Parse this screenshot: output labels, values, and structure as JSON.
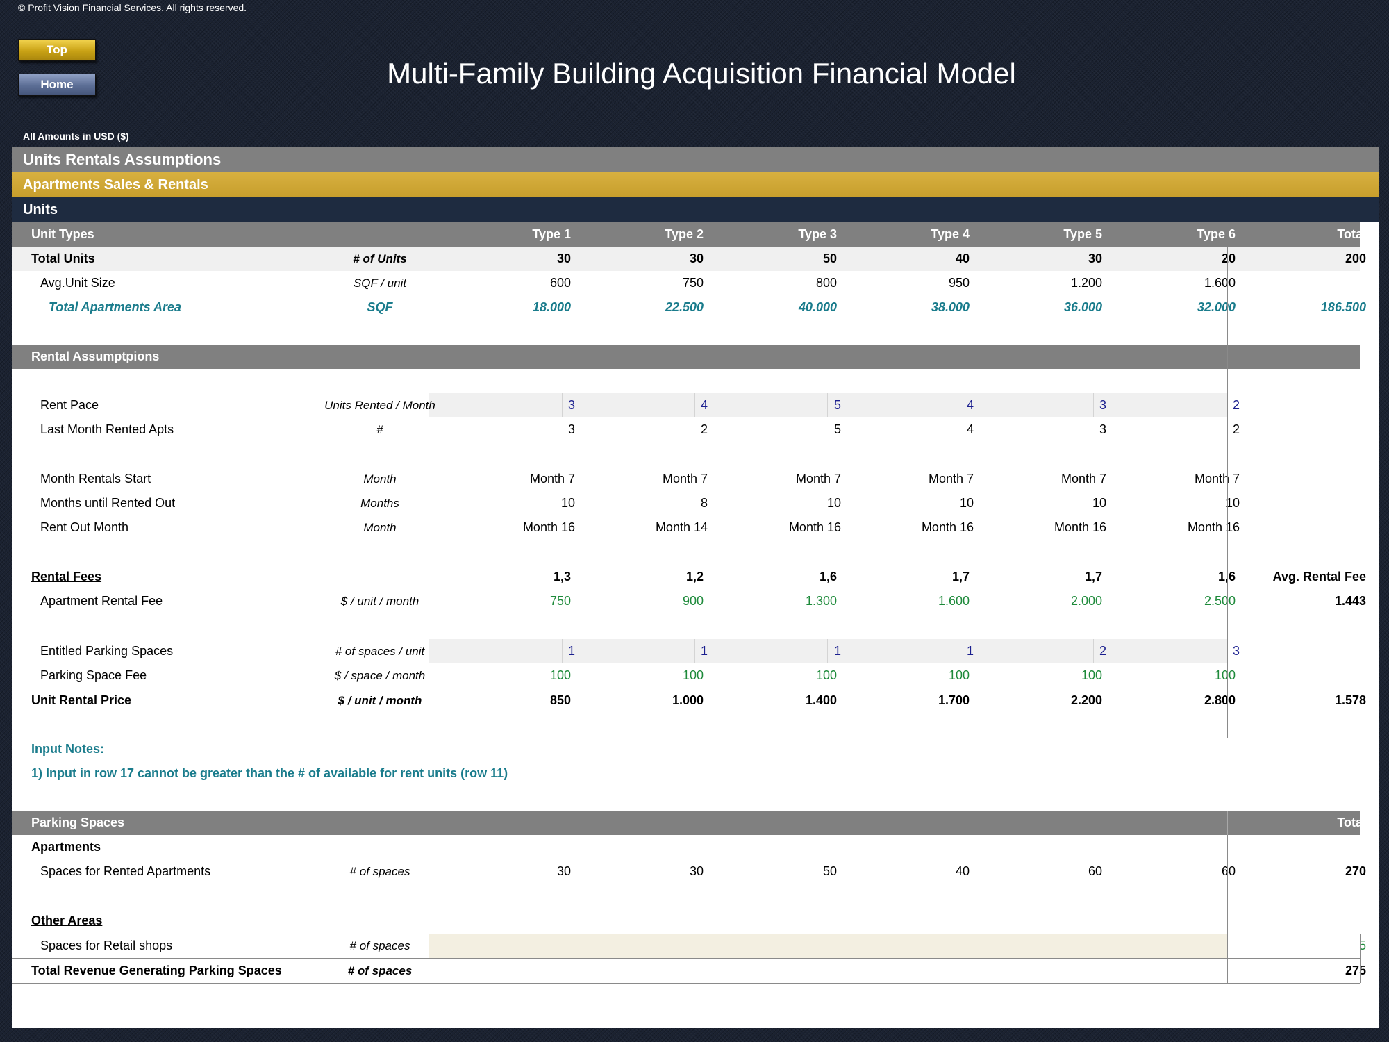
{
  "copyright": "© Profit Vision Financial Services. All rights reserved.",
  "nav": {
    "top": "Top",
    "home": "Home"
  },
  "title": "Multi-Family Building Acquisition Financial Model",
  "amounts_note": "All Amounts in  USD ($)",
  "bands": {
    "section": "Units Rentals Assumptions",
    "subsection": "Apartments Sales & Rentals",
    "group": "Units"
  },
  "unit_types": {
    "label": "Unit Types",
    "types": [
      "Type 1",
      "Type 2",
      "Type 3",
      "Type 4",
      "Type 5",
      "Type 6"
    ],
    "total": "Total"
  },
  "total_units": {
    "label": "Total Units",
    "unit": "# of Units",
    "values": [
      "30",
      "30",
      "50",
      "40",
      "30",
      "20"
    ],
    "total": "200"
  },
  "avg_unit_size": {
    "label": "Avg.Unit Size",
    "unit": "SQF / unit",
    "values": [
      "600",
      "750",
      "800",
      "950",
      "1.200",
      "1.600"
    ]
  },
  "total_area": {
    "label": "Total Apartments Area",
    "unit": "SQF",
    "values": [
      "18.000",
      "22.500",
      "40.000",
      "38.000",
      "36.000",
      "32.000"
    ],
    "total": "186.500"
  },
  "rental_header": "Rental Assumptpions",
  "rent_pace": {
    "label": "Rent Pace",
    "unit": "Units Rented / Month",
    "values": [
      "3",
      "4",
      "5",
      "4",
      "3",
      "2"
    ]
  },
  "last_month": {
    "label": "Last Month Rented Apts",
    "unit": "#",
    "values": [
      "3",
      "2",
      "5",
      "4",
      "3",
      "2"
    ]
  },
  "rental_start": {
    "label": "Month Rentals Start",
    "unit": "Month",
    "values": [
      "Month 7",
      "Month 7",
      "Month 7",
      "Month 7",
      "Month 7",
      "Month 7"
    ]
  },
  "months_until": {
    "label": "Months until Rented Out",
    "unit": "Months",
    "values": [
      "10",
      "8",
      "10",
      "10",
      "10",
      "10"
    ]
  },
  "rent_out": {
    "label": "Rent Out Month",
    "unit": "Month",
    "values": [
      "Month 16",
      "Month 14",
      "Month 16",
      "Month 16",
      "Month 16",
      "Month 16"
    ]
  },
  "rental_fees": {
    "label": "Rental Fees",
    "values": [
      "1,3",
      "1,2",
      "1,6",
      "1,7",
      "1,7",
      "1,6"
    ],
    "total": "Avg. Rental Fee"
  },
  "apt_fee": {
    "label": "Apartment Rental Fee",
    "unit": "$ / unit / month",
    "values": [
      "750",
      "900",
      "1.300",
      "1.600",
      "2.000",
      "2.500"
    ],
    "total": "1.443"
  },
  "parking_entitled": {
    "label": "Entitled Parking Spaces",
    "unit": "# of spaces / unit",
    "values": [
      "1",
      "1",
      "1",
      "1",
      "2",
      "3"
    ]
  },
  "parking_fee": {
    "label": "Parking Space Fee",
    "unit": "$ / space / month",
    "values": [
      "100",
      "100",
      "100",
      "100",
      "100",
      "100"
    ]
  },
  "unit_price": {
    "label": "Unit Rental Price",
    "unit": "$ / unit / month",
    "values": [
      "850",
      "1.000",
      "1.400",
      "1.700",
      "2.200",
      "2.800"
    ],
    "total": "1.578"
  },
  "notes": {
    "heading": "Input Notes:",
    "line1": "1) Input in row 17 cannot be greater than the # of available for rent units (row 11)"
  },
  "parking": {
    "header": "Parking Spaces",
    "total_label": "Total",
    "apartments": "Apartments",
    "rented": {
      "label": "Spaces for Rented Apartments",
      "unit": "# of spaces",
      "values": [
        "30",
        "30",
        "50",
        "40",
        "60",
        "60"
      ],
      "total": "270"
    },
    "other": "Other Areas",
    "retail": {
      "label": "Spaces for Retail shops",
      "unit": "# of spaces",
      "total": "5"
    },
    "revenue": {
      "label": "Total Revenue Generating Parking Spaces",
      "unit": "# of spaces",
      "total": "275"
    }
  }
}
